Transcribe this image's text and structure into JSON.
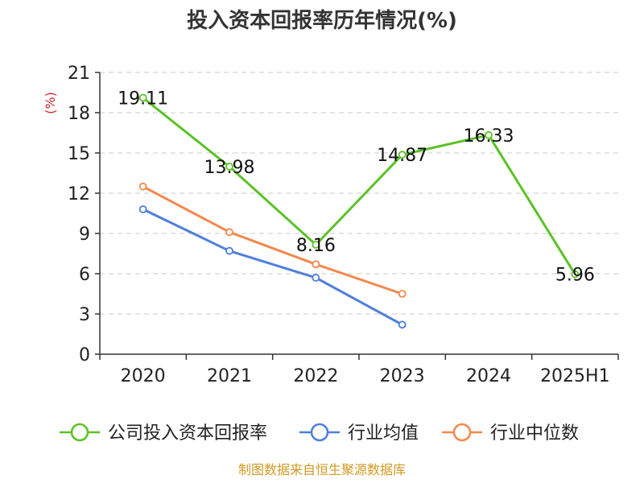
{
  "chart_data": {
    "type": "line",
    "title": "投入资本回报率历年情况(%)",
    "ylabel": "(%)",
    "xlabel": "",
    "categories": [
      "2020",
      "2021",
      "2022",
      "2023",
      "2024",
      "2025H1"
    ],
    "ylim": [
      0,
      21
    ],
    "yticks": [
      0,
      3,
      6,
      9,
      12,
      15,
      18,
      21
    ],
    "grid": true,
    "legend_position": "bottom",
    "series": [
      {
        "name": "公司投入资本回报率",
        "color": "#5bc226",
        "values": [
          19.11,
          13.98,
          8.16,
          14.87,
          16.33,
          5.96
        ],
        "labels": [
          "19.11",
          "13.98",
          "8.16",
          "14.87",
          "16.33",
          "5.96"
        ]
      },
      {
        "name": "行业均值",
        "color": "#4f7fdc",
        "values": [
          10.8,
          7.7,
          5.7,
          2.2,
          null,
          null
        ]
      },
      {
        "name": "行业中位数",
        "color": "#f4884d",
        "values": [
          12.5,
          9.1,
          6.7,
          4.5,
          null,
          null
        ]
      }
    ]
  },
  "source": "制图数据来自恒生聚源数据库"
}
